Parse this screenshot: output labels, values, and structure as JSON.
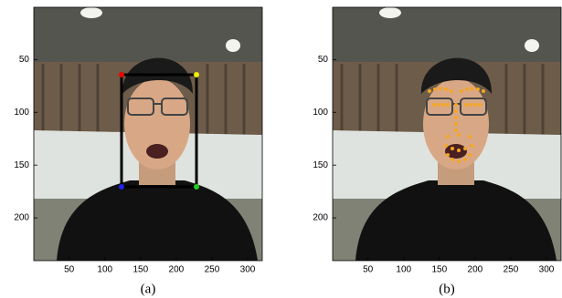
{
  "figure": {
    "panels": [
      {
        "caption": "(a)",
        "xlim": [
          0.5,
          320.5
        ],
        "ylim": [
          0.5,
          240.5
        ],
        "xticks": [
          50,
          100,
          150,
          200,
          250,
          300
        ],
        "yticks": [
          50,
          100,
          150,
          200
        ]
      },
      {
        "caption": "(b)",
        "xlim": [
          0.5,
          320.5
        ],
        "ylim": [
          0.5,
          240.5
        ],
        "xticks": [
          50,
          100,
          150,
          200,
          250,
          300
        ],
        "yticks": [
          50,
          100,
          150,
          200
        ]
      }
    ]
  }
}
